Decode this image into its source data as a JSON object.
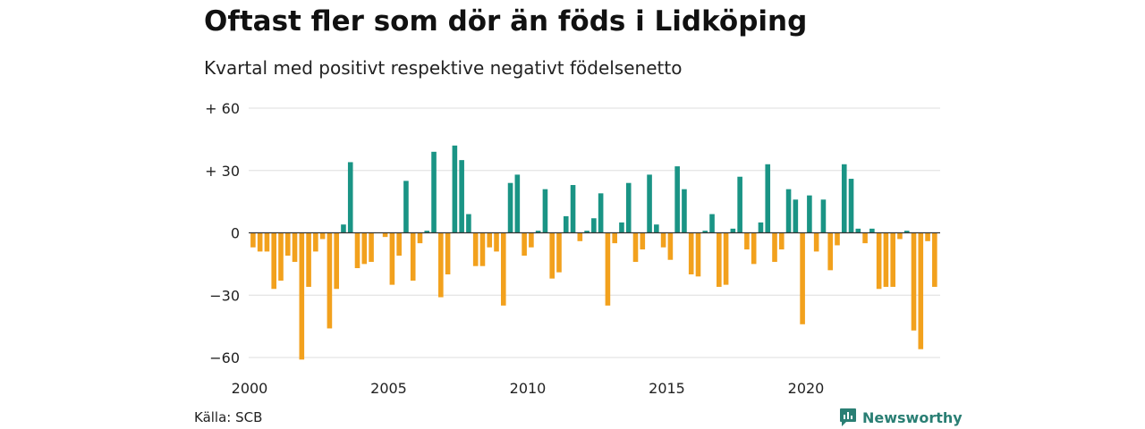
{
  "title": "Oftast fler som dör än föds i Lidköping",
  "subtitle": "Kvartal med positivt respektive negativt födelsenetto",
  "source": "Källa: SCB",
  "brand": {
    "name": "Newsworthy",
    "icon": "newsworthy-logo-icon"
  },
  "colors": {
    "positive": "#1a9485",
    "negative": "#f2a11d",
    "grid": "#dddddd",
    "zero_line": "#333333"
  },
  "chart_data": {
    "type": "bar",
    "title": "Oftast fler som dör än föds i Lidköping",
    "subtitle": "Kvartal med positivt respektive negativt födelsenetto",
    "x_start": 2000,
    "periods_per_year": 4,
    "xticks": [
      2000,
      2005,
      2010,
      2015,
      2020
    ],
    "xtick_labels": [
      "2000",
      "2005",
      "2010",
      "2015",
      "2020"
    ],
    "ylim": [
      -60,
      60
    ],
    "yticks": [
      60,
      30,
      0,
      -30,
      -60
    ],
    "ytick_labels": [
      "+ 60",
      "+ 30",
      "0",
      "−30",
      "−60"
    ],
    "grid": true,
    "values": [
      -7,
      -9,
      -9,
      -27,
      -23,
      -11,
      -14,
      -61,
      -26,
      -9,
      -3,
      -46,
      -27,
      4,
      34,
      -17,
      -15,
      -14,
      0,
      -2,
      -25,
      -11,
      25,
      -23,
      -5,
      1,
      39,
      -31,
      -20,
      42,
      35,
      9,
      -16,
      -16,
      -7,
      -9,
      -35,
      24,
      28,
      -11,
      -7,
      1,
      21,
      -22,
      -19,
      8,
      23,
      -4,
      1,
      7,
      19,
      -35,
      -5,
      5,
      24,
      -14,
      -8,
      28,
      4,
      -7,
      -13,
      32,
      21,
      -20,
      -21,
      1,
      9,
      -26,
      -25,
      2,
      27,
      -8,
      -15,
      5,
      33,
      -14,
      -8,
      21,
      16,
      -44,
      18,
      -9,
      16,
      -18,
      -6,
      33,
      26,
      2,
      -5,
      2,
      -27,
      -26,
      -26,
      -3,
      1,
      -47,
      -56,
      -4,
      -26
    ]
  }
}
